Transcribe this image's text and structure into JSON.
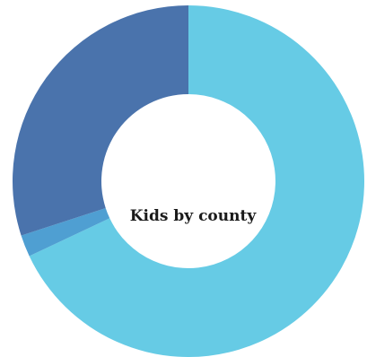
{
  "chart_data": {
    "type": "pie",
    "donut": true,
    "center_label": "Kids by county",
    "slices": [
      {
        "value": 68.0,
        "color": "#66cbe5"
      },
      {
        "value": 2.0,
        "color": "#4f9fd2"
      },
      {
        "value": 30.0,
        "color": "#4a73ac"
      }
    ]
  }
}
